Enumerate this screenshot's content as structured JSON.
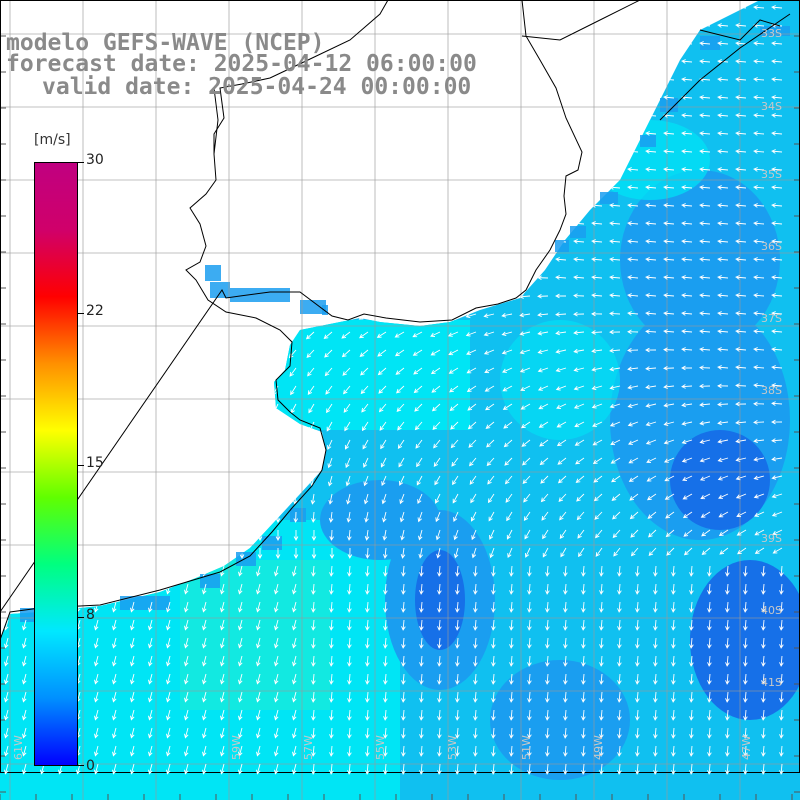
{
  "header": {
    "line1": "modelo GEFS-WAVE (NCEP)",
    "line2": "forecast date: 2025-04-12 06:00:00",
    "line3": "valid date: 2025-04-24 00:00:00"
  },
  "colorbar": {
    "unit": "[m/s]",
    "ticks": [
      {
        "label": "30",
        "value": 30
      },
      {
        "label": "22",
        "value": 22
      },
      {
        "label": "15",
        "value": 15
      },
      {
        "label": "8",
        "value": 8
      },
      {
        "label": "0",
        "value": 0
      }
    ],
    "colors": [
      "#0000ff",
      "#0090ff",
      "#00e8ff",
      "#00ff80",
      "#60ff00",
      "#ffff00",
      "#ff9000",
      "#ff0000",
      "#d0006a",
      "#c00080"
    ]
  },
  "map": {
    "variable": "wind speed and direction",
    "ocean_colors": {
      "cyan": "#00e5f5",
      "light_blue": "#10c0f0",
      "mid_blue": "#1a9ef0",
      "deep_blue": "#1670e8",
      "green_tint": "#20ecd0"
    },
    "latitude_labels": [
      "33S",
      "34S",
      "35S",
      "36S",
      "37S",
      "38S",
      "39S",
      "40S",
      "41S"
    ],
    "longitude_labels": [
      "61W",
      "59W",
      "57W",
      "55W",
      "53W",
      "51W",
      "49W",
      "47W"
    ]
  }
}
